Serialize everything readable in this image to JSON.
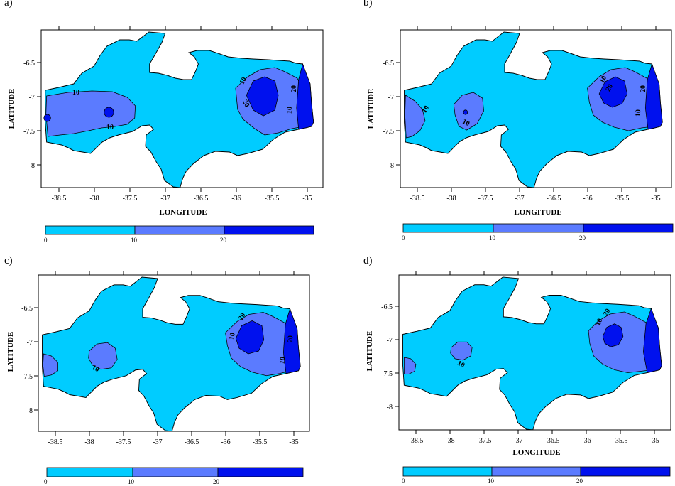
{
  "colors": {
    "level_0_10": "#00ccff",
    "level_10_20": "#5b7bff",
    "level_20_plus": "#0011ee",
    "outline": "#000000"
  },
  "chart_data": [
    {
      "panel": "a)",
      "type": "contour-map",
      "xlabel": "LONGITUDE",
      "ylabel": "LATITUDE",
      "xlim": [
        -38.8,
        -34.75
      ],
      "ylim": [
        -8.4,
        -6.05
      ],
      "xticks": [
        "-38.5",
        "-38",
        "-37.5",
        "-37",
        "-36.5",
        "-36",
        "-35.5",
        "-35"
      ],
      "yticks": [
        "-6.5",
        "-7",
        "-7.5",
        "-8"
      ],
      "colorbar": {
        "levels": [
          0,
          10,
          20,
          30
        ],
        "labels": [
          "0",
          "10",
          "20"
        ]
      },
      "contour_labels": [
        "10",
        "10",
        "10",
        "20",
        "20",
        "10"
      ]
    },
    {
      "panel": "b)",
      "type": "contour-map",
      "xlabel": "LONGITUDE",
      "ylabel": "LATITUDE",
      "xlim": [
        -38.8,
        -34.75
      ],
      "ylim": [
        -8.4,
        -6.05
      ],
      "xticks": [
        "-38.5",
        "-38",
        "-37.5",
        "-37",
        "-36.5",
        "-36",
        "-35.5",
        "-35"
      ],
      "yticks": [
        "-6.5",
        "-7",
        "-7.5",
        "-8"
      ],
      "colorbar": {
        "levels": [
          0,
          10,
          20,
          30
        ],
        "labels": [
          "0",
          "10",
          "20"
        ]
      },
      "contour_labels": [
        "10",
        "10",
        "10",
        "20",
        "20",
        "10"
      ]
    },
    {
      "panel": "c)",
      "type": "contour-map",
      "xlabel": "",
      "ylabel": "LATITUDE",
      "xlim": [
        -38.8,
        -34.75
      ],
      "ylim": [
        -8.4,
        -6.05
      ],
      "xticks": [
        "-38.5",
        "-38",
        "-37.5",
        "-37",
        "-36.5",
        "-36",
        "-35.5",
        "-35"
      ],
      "yticks": [
        "-6.5",
        "-7",
        "-7.5",
        "-8"
      ],
      "colorbar": {
        "levels": [
          0,
          10,
          20,
          30
        ],
        "labels": [
          "0",
          "10",
          "20"
        ]
      },
      "contour_labels": [
        "10",
        "10",
        "20",
        "20",
        "10"
      ]
    },
    {
      "panel": "d)",
      "type": "contour-map",
      "xlabel": "LONGITUDE",
      "ylabel": "LATITUDE",
      "xlim": [
        -38.8,
        -34.75
      ],
      "ylim": [
        -8.4,
        -6.05
      ],
      "xticks": [
        "-38.5",
        "-38",
        "-37.5",
        "-37",
        "-36.5",
        "-36",
        "-35.5",
        "-35"
      ],
      "yticks": [
        "-6.5",
        "-7",
        "-7.5",
        "-8"
      ],
      "colorbar": {
        "levels": [
          0,
          10,
          20,
          30
        ],
        "labels": [
          "0",
          "10",
          "20"
        ]
      },
      "contour_labels": [
        "20",
        "10",
        "10"
      ]
    }
  ]
}
